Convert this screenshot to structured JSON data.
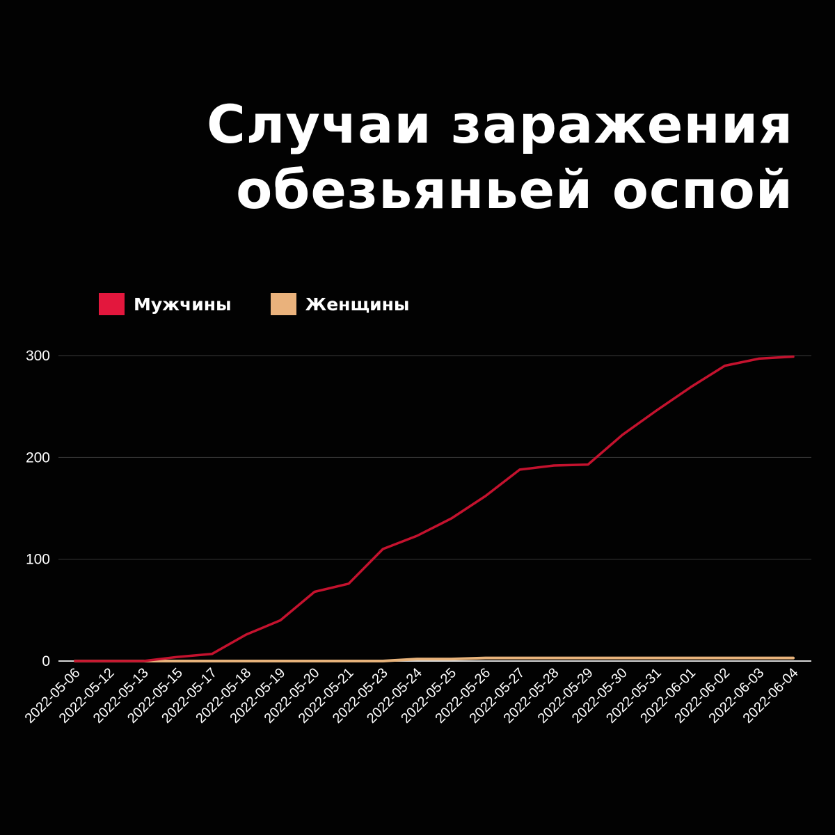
{
  "title": {
    "line1": "Случаи заражения",
    "line2": "обезьяньей оспой"
  },
  "colors": {
    "background": "#020202",
    "men": "#c4122e",
    "women": "#e8b37b",
    "legend_men": "#e3173d",
    "legend_women": "#eab27c",
    "grid": "#3a3a3a"
  },
  "chart_data": {
    "type": "line",
    "title": "Случаи заражения обезьяньей оспой",
    "xlabel": "",
    "ylabel": "",
    "ylim": [
      0,
      300
    ],
    "yticks": [
      0,
      100,
      200,
      300
    ],
    "grid": true,
    "legend_position": "top-left",
    "categories": [
      "2022-05-06",
      "2022-05-12",
      "2022-05-13",
      "2022-05-15",
      "2022-05-17",
      "2022-05-18",
      "2022-05-19",
      "2022-05-20",
      "2022-05-21",
      "2022-05-23",
      "2022-05-24",
      "2022-05-25",
      "2022-05-26",
      "2022-05-27",
      "2022-05-28",
      "2022-05-29",
      "2022-05-30",
      "2022-05-31",
      "2022-06-01",
      "2022-06-02",
      "2022-06-03",
      "2022-06-04"
    ],
    "series": [
      {
        "name": "Мужчины",
        "color": "#c4122e",
        "values": [
          0,
          0,
          0,
          4,
          7,
          26,
          40,
          68,
          76,
          110,
          123,
          140,
          162,
          188,
          192,
          193,
          222,
          246,
          269,
          290,
          297,
          299
        ]
      },
      {
        "name": "Женщины",
        "color": "#e8b37b",
        "values": [
          0,
          0,
          0,
          0,
          0,
          0,
          0,
          0,
          0,
          0,
          2,
          2,
          3,
          3,
          3,
          3,
          3,
          3,
          3,
          3,
          3,
          3
        ]
      }
    ]
  }
}
